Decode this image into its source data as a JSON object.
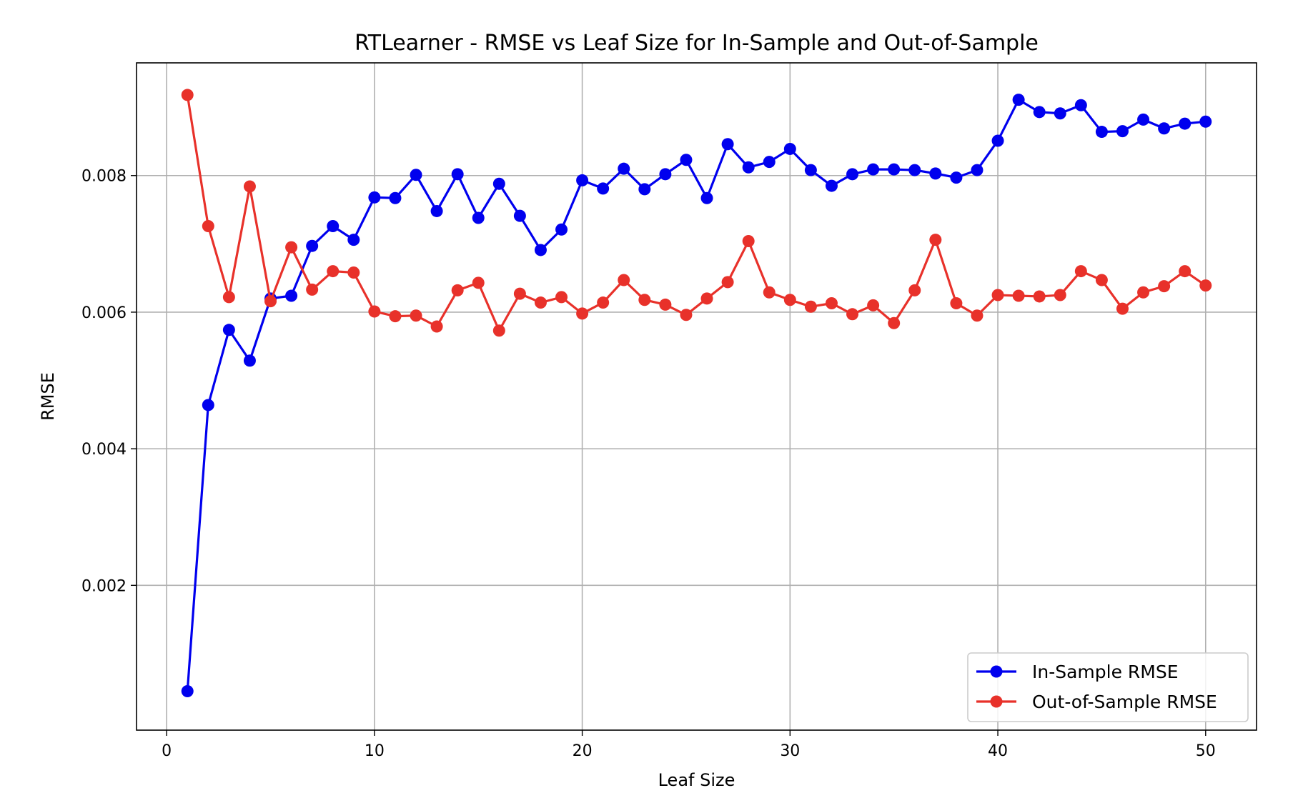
{
  "chart_data": {
    "type": "line",
    "title": "RTLearner - RMSE vs Leaf Size for In-Sample and Out-of-Sample",
    "xlabel": "Leaf Size",
    "ylabel": "RMSE",
    "xlim": [
      -1.45,
      52.45
    ],
    "ylim": [
      -0.00012,
      0.00965
    ],
    "xticks": [
      0,
      10,
      20,
      30,
      40,
      50
    ],
    "xtick_labels": [
      "0",
      "10",
      "20",
      "30",
      "40",
      "50"
    ],
    "yticks": [
      0.002,
      0.004,
      0.006,
      0.008
    ],
    "ytick_labels": [
      "0.002",
      "0.004",
      "0.006",
      "0.008"
    ],
    "grid": true,
    "legend_position": "bottom-right",
    "x": [
      1,
      2,
      3,
      4,
      5,
      6,
      7,
      8,
      9,
      10,
      11,
      12,
      13,
      14,
      15,
      16,
      17,
      18,
      19,
      20,
      21,
      22,
      23,
      24,
      25,
      26,
      27,
      28,
      29,
      30,
      31,
      32,
      33,
      34,
      35,
      36,
      37,
      38,
      39,
      40,
      41,
      42,
      43,
      44,
      45,
      46,
      47,
      48,
      49,
      50
    ],
    "series": [
      {
        "name": "In-Sample RMSE",
        "color": "#0000ee",
        "values": [
          0.00045,
          0.00464,
          0.00574,
          0.00529,
          0.0062,
          0.00624,
          0.00697,
          0.00726,
          0.00706,
          0.00768,
          0.00767,
          0.00801,
          0.00748,
          0.00802,
          0.00738,
          0.00788,
          0.00741,
          0.00691,
          0.00721,
          0.00793,
          0.00781,
          0.0081,
          0.0078,
          0.00802,
          0.00823,
          0.00767,
          0.00846,
          0.00812,
          0.0082,
          0.00839,
          0.00808,
          0.00785,
          0.00802,
          0.00809,
          0.00809,
          0.00808,
          0.00803,
          0.00797,
          0.00808,
          0.00851,
          0.00911,
          0.00893,
          0.00891,
          0.00903,
          0.00864,
          0.00865,
          0.00882,
          0.00869,
          0.00876,
          0.00879
        ]
      },
      {
        "name": "Out-of-Sample RMSE",
        "color": "#e8312a",
        "values": [
          0.00918,
          0.00726,
          0.00622,
          0.00784,
          0.00616,
          0.00695,
          0.00633,
          0.0066,
          0.00658,
          0.00601,
          0.00594,
          0.00595,
          0.00579,
          0.00632,
          0.00643,
          0.00573,
          0.00627,
          0.00614,
          0.00622,
          0.00598,
          0.00614,
          0.00647,
          0.00618,
          0.00611,
          0.00596,
          0.0062,
          0.00644,
          0.00704,
          0.00629,
          0.00618,
          0.00608,
          0.00613,
          0.00597,
          0.0061,
          0.00584,
          0.00632,
          0.00706,
          0.00613,
          0.00595,
          0.00625,
          0.00624,
          0.00623,
          0.00625,
          0.0066,
          0.00647,
          0.00605,
          0.00629,
          0.00638,
          0.0066,
          0.00639
        ]
      }
    ]
  }
}
